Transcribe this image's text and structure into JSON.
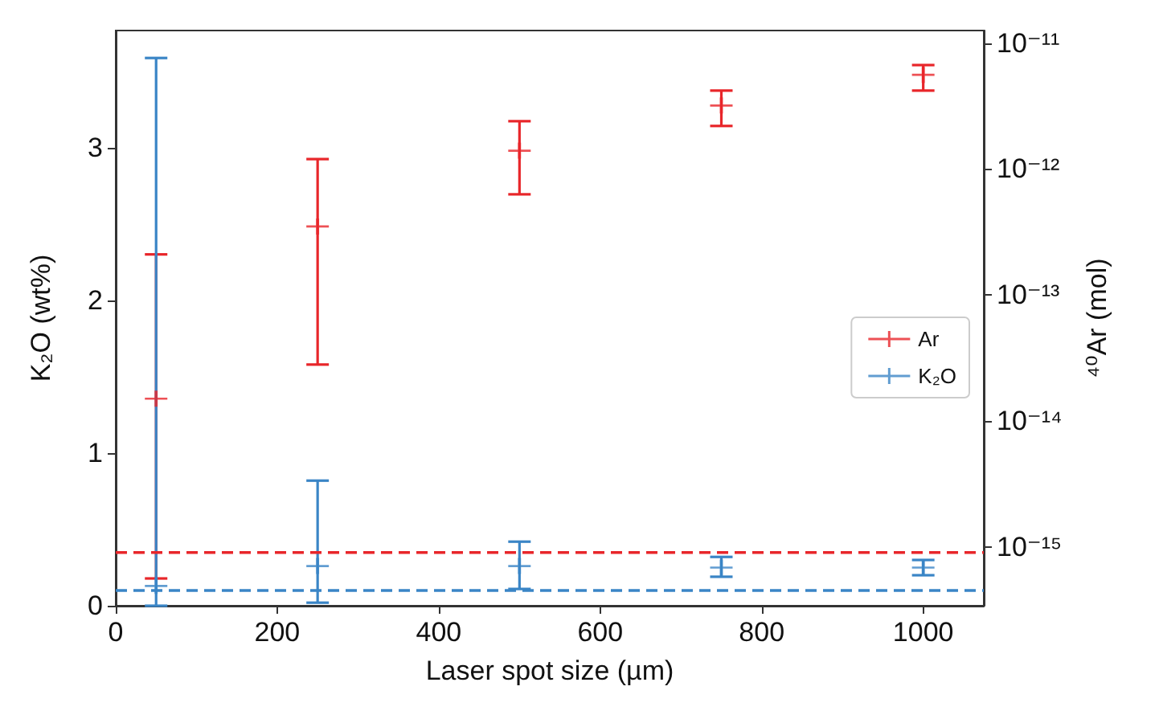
{
  "chart_data": {
    "type": "scatter",
    "xlabel": "Laser spot size (µm)",
    "ylabel": "K₂O (wt%)",
    "y2label": "⁴⁰Ar (mol)",
    "x": [
      50,
      250,
      500,
      750,
      1000
    ],
    "series": [
      {
        "name": "Ar",
        "color": "#e8262a",
        "axis": "y2",
        "values": [
          1.5e-14,
          3.5e-13,
          1.4e-12,
          3.2e-12,
          5.6e-12
        ],
        "errors": [
          [
            5.6e-16,
            2.1e-13
          ],
          [
            2.8e-14,
            1.2e-12
          ],
          [
            6.3e-13,
            2.4e-12
          ],
          [
            2.2e-12,
            4.2e-12
          ],
          [
            4.2e-12,
            6.7e-12
          ]
        ]
      },
      {
        "name": "K₂O",
        "color": "#3a85c6",
        "values": [
          0.13,
          0.26,
          0.26,
          0.25,
          0.25
        ],
        "errors": [
          [
            0,
            3.59
          ],
          [
            0.02,
            0.82
          ],
          [
            0.11,
            0.42
          ],
          [
            0.19,
            0.32
          ],
          [
            0.2,
            0.3
          ]
        ]
      }
    ],
    "xlim": [
      0,
      1075
    ],
    "xticks": [
      0,
      200,
      400,
      600,
      800,
      1000
    ],
    "ylim": [
      0,
      3.77
    ],
    "yticks": [
      0,
      1,
      2,
      3
    ],
    "log": "y2",
    "y2lim": [
      3.4e-16,
      1.26e-11
    ],
    "y2ticks": [
      {
        "value": 1e-15,
        "label": "10⁻¹⁵"
      },
      {
        "value": 1e-14,
        "label": "10⁻¹⁴"
      },
      {
        "value": 1e-13,
        "label": "10⁻¹³"
      },
      {
        "value": 1e-12,
        "label": "10⁻¹²"
      },
      {
        "value": 1e-11,
        "label": "10⁻¹¹"
      }
    ],
    "ref_lines": [
      {
        "axis": "y2",
        "value": 9e-16,
        "color": "#e8262a",
        "line_style": "dashed"
      },
      {
        "axis": "y",
        "value": 0.1,
        "color": "#3a85c6",
        "line_style": "dashed"
      }
    ],
    "legend": "right",
    "grid": false,
    "marker": "cross"
  }
}
